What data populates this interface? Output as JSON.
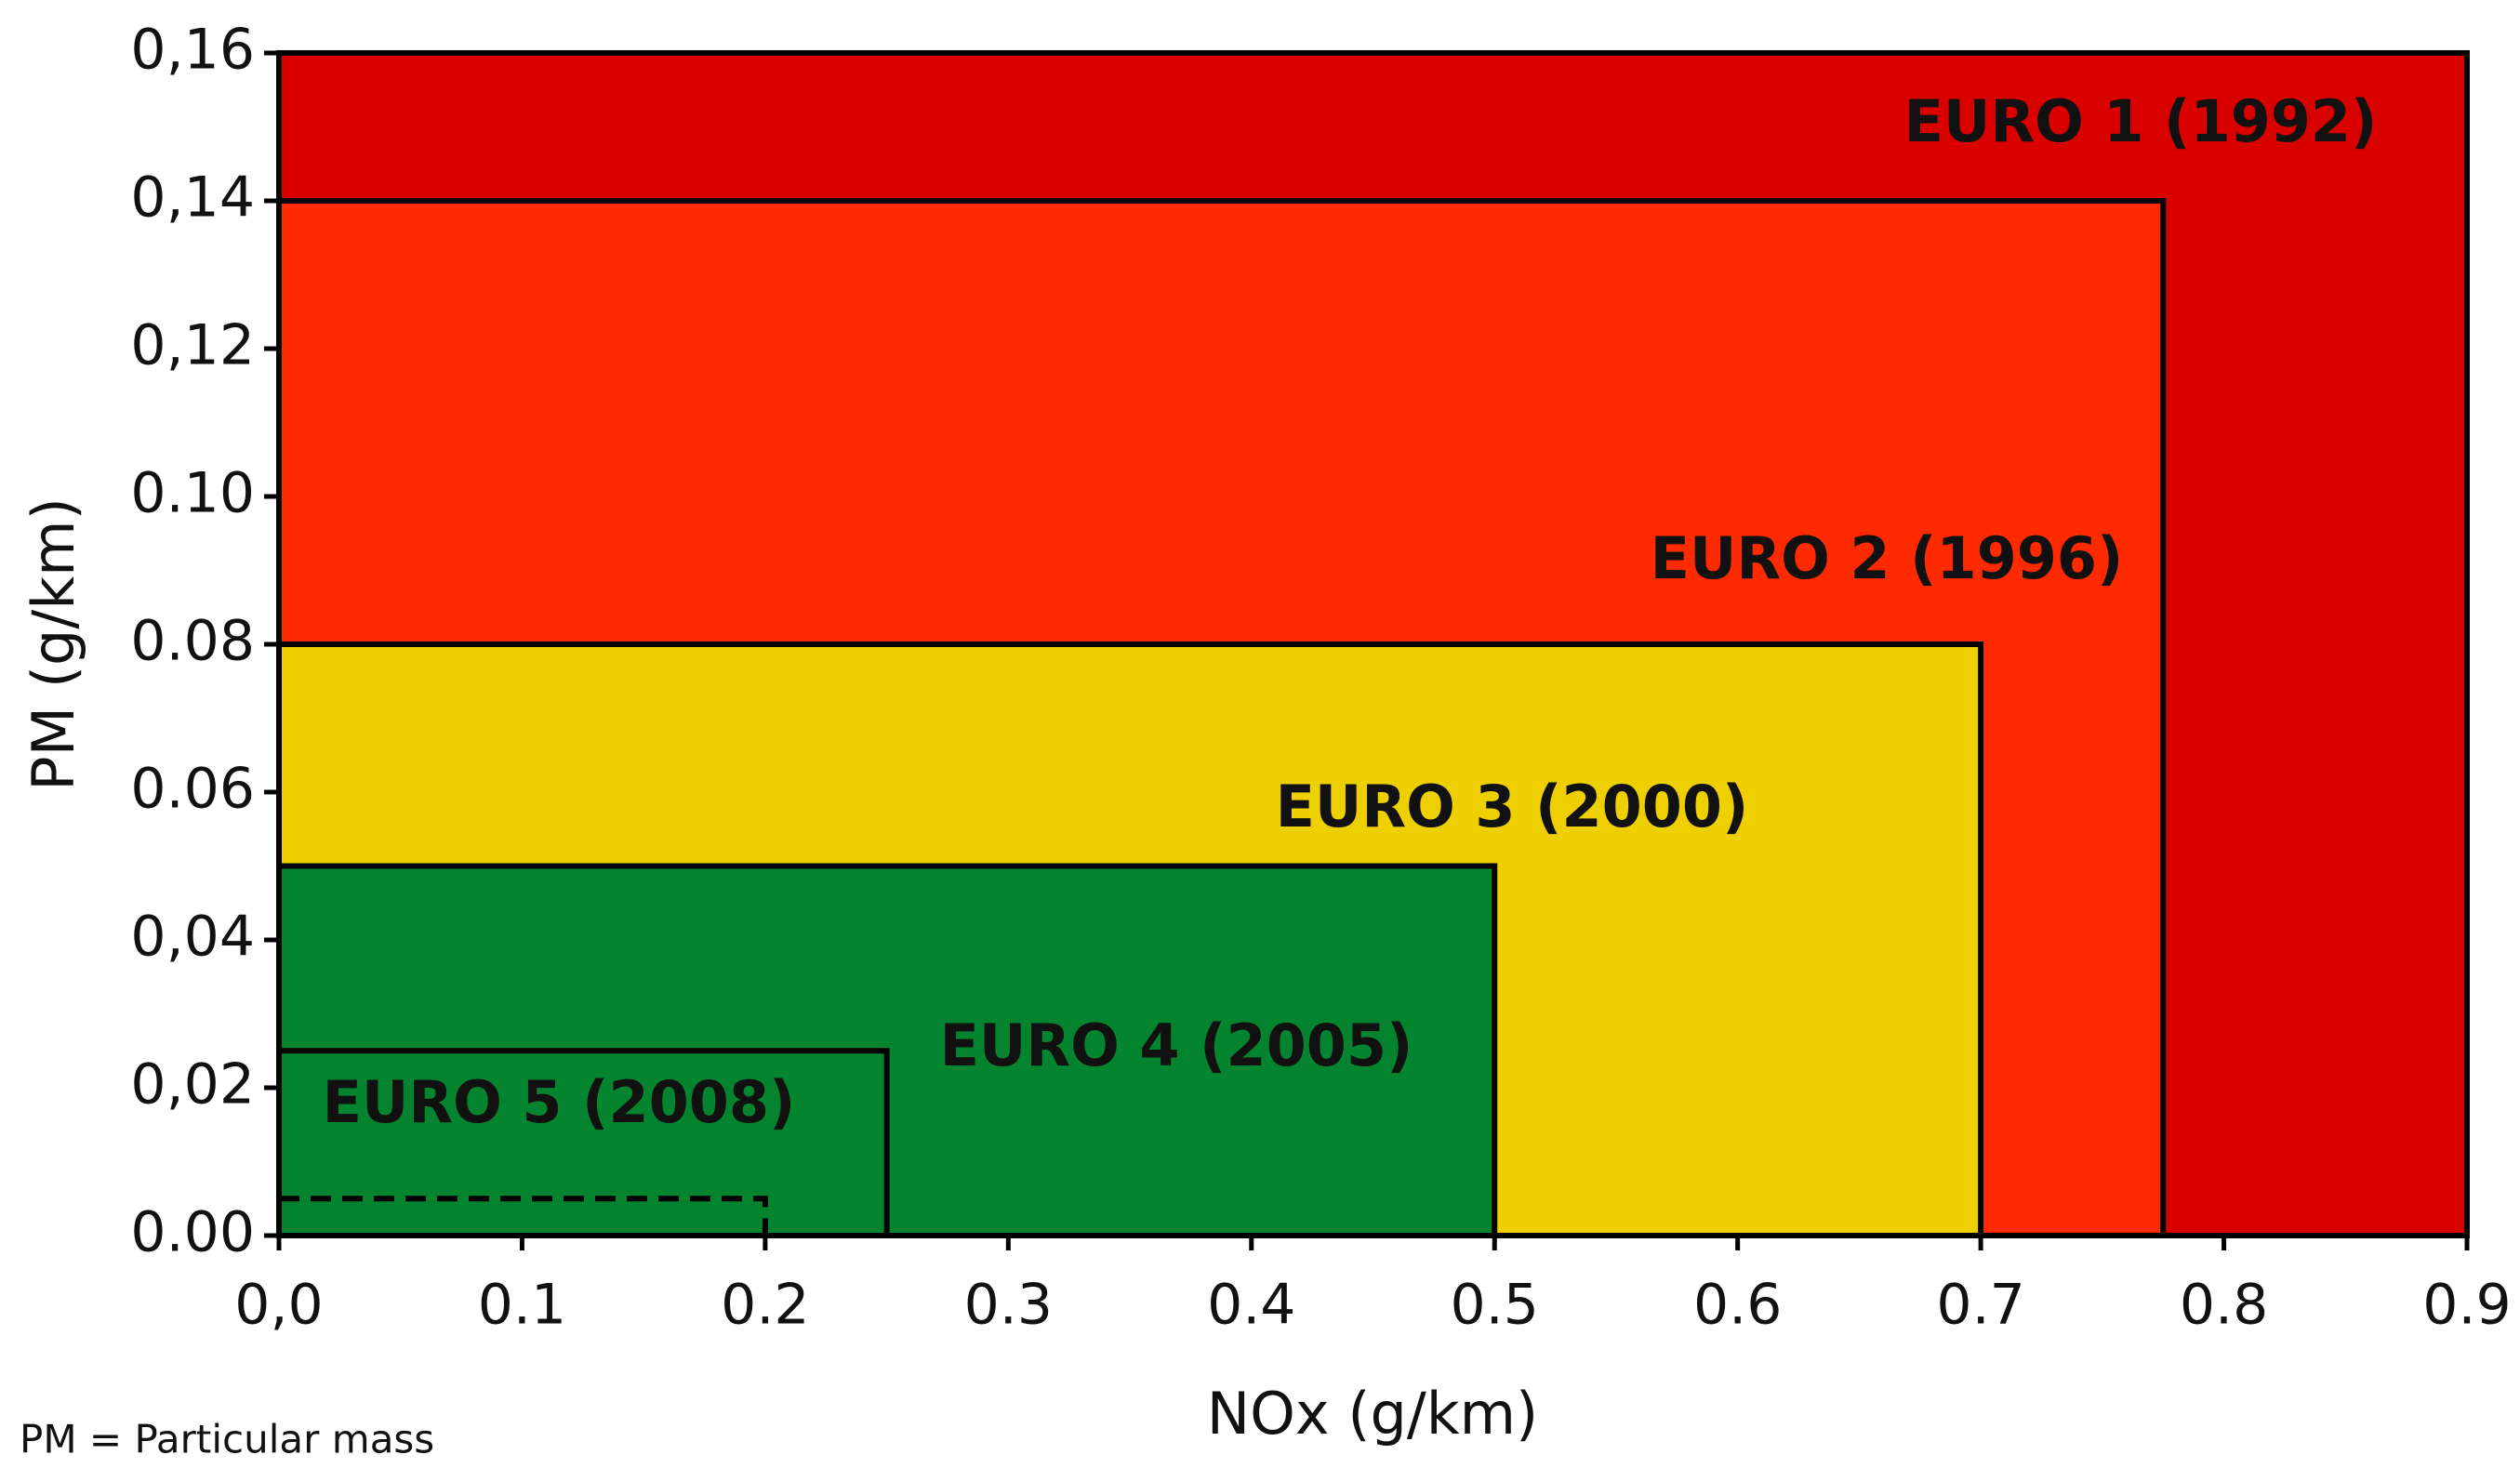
{
  "chart_data": {
    "type": "rectangle",
    "xlabel": "NOx (g/km)",
    "ylabel": "PM (g/km)",
    "footnote": "PM = Particular mass",
    "xlim": [
      0,
      0.9
    ],
    "ylim": [
      0,
      0.16
    ],
    "xticks": [
      {
        "value": 0,
        "label": "0,0"
      },
      0.1,
      0.2,
      0.3,
      0.4,
      0.5,
      0.6,
      0.7,
      0.8,
      0.9
    ],
    "yticks": [
      {
        "value": 0,
        "label": "0.00"
      },
      {
        "value": 0.02,
        "label": "0,02"
      },
      {
        "value": 0.04,
        "label": "0,04"
      },
      {
        "value": 0.06,
        "label": "0.06"
      },
      {
        "value": 0.08,
        "label": "0.08"
      },
      {
        "value": 0.1,
        "label": "0.10"
      },
      {
        "value": 0.12,
        "label": "0,12"
      },
      {
        "value": 0.14,
        "label": "0,14"
      },
      {
        "value": 0.16,
        "label": "0,16"
      }
    ],
    "series": [
      {
        "name": "EURO 1 (1992)",
        "color": "#d90000",
        "x": 0.9,
        "y": 0.16
      },
      {
        "name": "EURO 2 (1996)",
        "color": "#ff2a00",
        "x": 0.775,
        "y": 0.14
      },
      {
        "name": "EURO 3 (2000)",
        "color": "#eecf00",
        "x": 0.7,
        "y": 0.08
      },
      {
        "name": "EURO 4 (2005)",
        "color": "#05842f",
        "x": 0.5,
        "y": 0.05
      },
      {
        "name": "EURO 5 (2008)",
        "color": "#05842f",
        "x": 0.25,
        "y": 0.025
      }
    ],
    "dashed_box": {
      "x": 0.2,
      "y": 0.005
    }
  }
}
